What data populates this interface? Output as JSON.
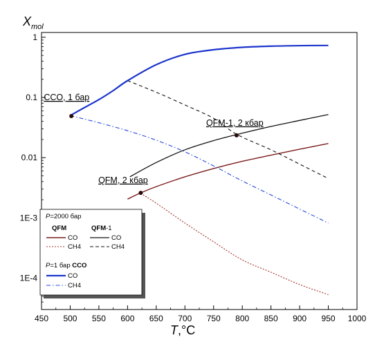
{
  "chart_data": {
    "type": "line",
    "ylabel_main": "X",
    "ylabel_sub": "mol",
    "xlabel_main": "T",
    "xlabel_unit": ",°C",
    "xlim": [
      450,
      1000
    ],
    "ylim": [
      3e-05,
      1.2
    ],
    "yscale": "log",
    "xticks": [
      450,
      500,
      550,
      600,
      650,
      700,
      750,
      800,
      850,
      900,
      950,
      1000
    ],
    "yticks": [
      {
        "value": 1,
        "label": "1"
      },
      {
        "value": 0.1,
        "label": "0.1"
      },
      {
        "value": 0.01,
        "label": "0.01"
      },
      {
        "value": 0.001,
        "label": "1E-3"
      },
      {
        "value": 0.0001,
        "label": "1E-4"
      }
    ],
    "series": [
      {
        "key": "qfm_co",
        "color": "#7a1a1a",
        "dash": "solid",
        "width": 1.4,
        "points": [
          [
            600,
            0.00205
          ],
          [
            625,
            0.00265
          ],
          [
            650,
            0.0033
          ],
          [
            700,
            0.0048
          ],
          [
            750,
            0.0066
          ],
          [
            800,
            0.0087
          ],
          [
            850,
            0.011
          ],
          [
            900,
            0.0138
          ],
          [
            950,
            0.0172
          ]
        ]
      },
      {
        "key": "qfm_ch4",
        "color": "#a0302a",
        "dash": "2,2",
        "width": 1.1,
        "points": [
          [
            623,
            0.00255
          ],
          [
            650,
            0.00175
          ],
          [
            700,
            0.00082
          ],
          [
            750,
            0.0004
          ],
          [
            800,
            0.0002
          ],
          [
            850,
            0.000125
          ],
          [
            900,
            7.8e-05
          ],
          [
            950,
            5.3e-05
          ]
        ]
      },
      {
        "key": "qfm1_co",
        "color": "#111111",
        "dash": "solid",
        "width": 1.3,
        "points": [
          [
            604,
            0.0048
          ],
          [
            650,
            0.0083
          ],
          [
            700,
            0.0135
          ],
          [
            750,
            0.0192
          ],
          [
            800,
            0.0255
          ],
          [
            850,
            0.033
          ],
          [
            900,
            0.0415
          ],
          [
            950,
            0.052
          ]
        ]
      },
      {
        "key": "qfm1_ch4",
        "color": "#111111",
        "dash": "5,4",
        "width": 1.1,
        "points": [
          [
            600,
            0.19
          ],
          [
            650,
            0.122
          ],
          [
            700,
            0.075
          ],
          [
            750,
            0.045
          ],
          [
            790,
            0.0245
          ],
          [
            850,
            0.0135
          ],
          [
            900,
            0.0078
          ],
          [
            950,
            0.0045
          ]
        ]
      },
      {
        "key": "cco_co",
        "color": "#1a33cc",
        "dash": "solid",
        "width": 2.2,
        "points": [
          [
            500,
            0.05
          ],
          [
            525,
            0.068
          ],
          [
            550,
            0.092
          ],
          [
            575,
            0.13
          ],
          [
            600,
            0.19
          ],
          [
            650,
            0.35
          ],
          [
            700,
            0.52
          ],
          [
            750,
            0.62
          ],
          [
            800,
            0.68
          ],
          [
            850,
            0.71
          ],
          [
            900,
            0.725
          ],
          [
            950,
            0.73
          ]
        ]
      },
      {
        "key": "cco_ch4",
        "color": "#2244dd",
        "dash": "6,3,1.5,3",
        "width": 1.1,
        "points": [
          [
            500,
            0.05
          ],
          [
            550,
            0.038
          ],
          [
            600,
            0.028
          ],
          [
            650,
            0.0195
          ],
          [
            700,
            0.0125
          ],
          [
            750,
            0.0073
          ],
          [
            800,
            0.0041
          ],
          [
            850,
            0.0024
          ],
          [
            900,
            0.0014
          ],
          [
            950,
            0.00082
          ]
        ]
      }
    ],
    "markers": [
      {
        "x": 502,
        "y": 0.049
      },
      {
        "x": 790,
        "y": 0.0235
      },
      {
        "x": 623,
        "y": 0.0026
      }
    ],
    "annotations": [
      {
        "text": "CCO, 1 бар",
        "x": 454,
        "y": 0.09
      },
      {
        "text": "QFM-1, 2 кбар",
        "x": 737,
        "y": 0.034
      },
      {
        "text": "QFM, 2 кбар",
        "x": 549,
        "y": 0.0038
      }
    ],
    "legend": {
      "header1_italic": "P",
      "header1_rest": "=2000 бар",
      "col1_title": "QFM",
      "col2_title": "QFM",
      "col2_suffix": "-1",
      "co": "CO",
      "ch4": "CH4",
      "header2_italic": "P",
      "header2_rest": "=1 бар",
      "header2_bold": "CCO",
      "placement": "bottom-left"
    }
  }
}
